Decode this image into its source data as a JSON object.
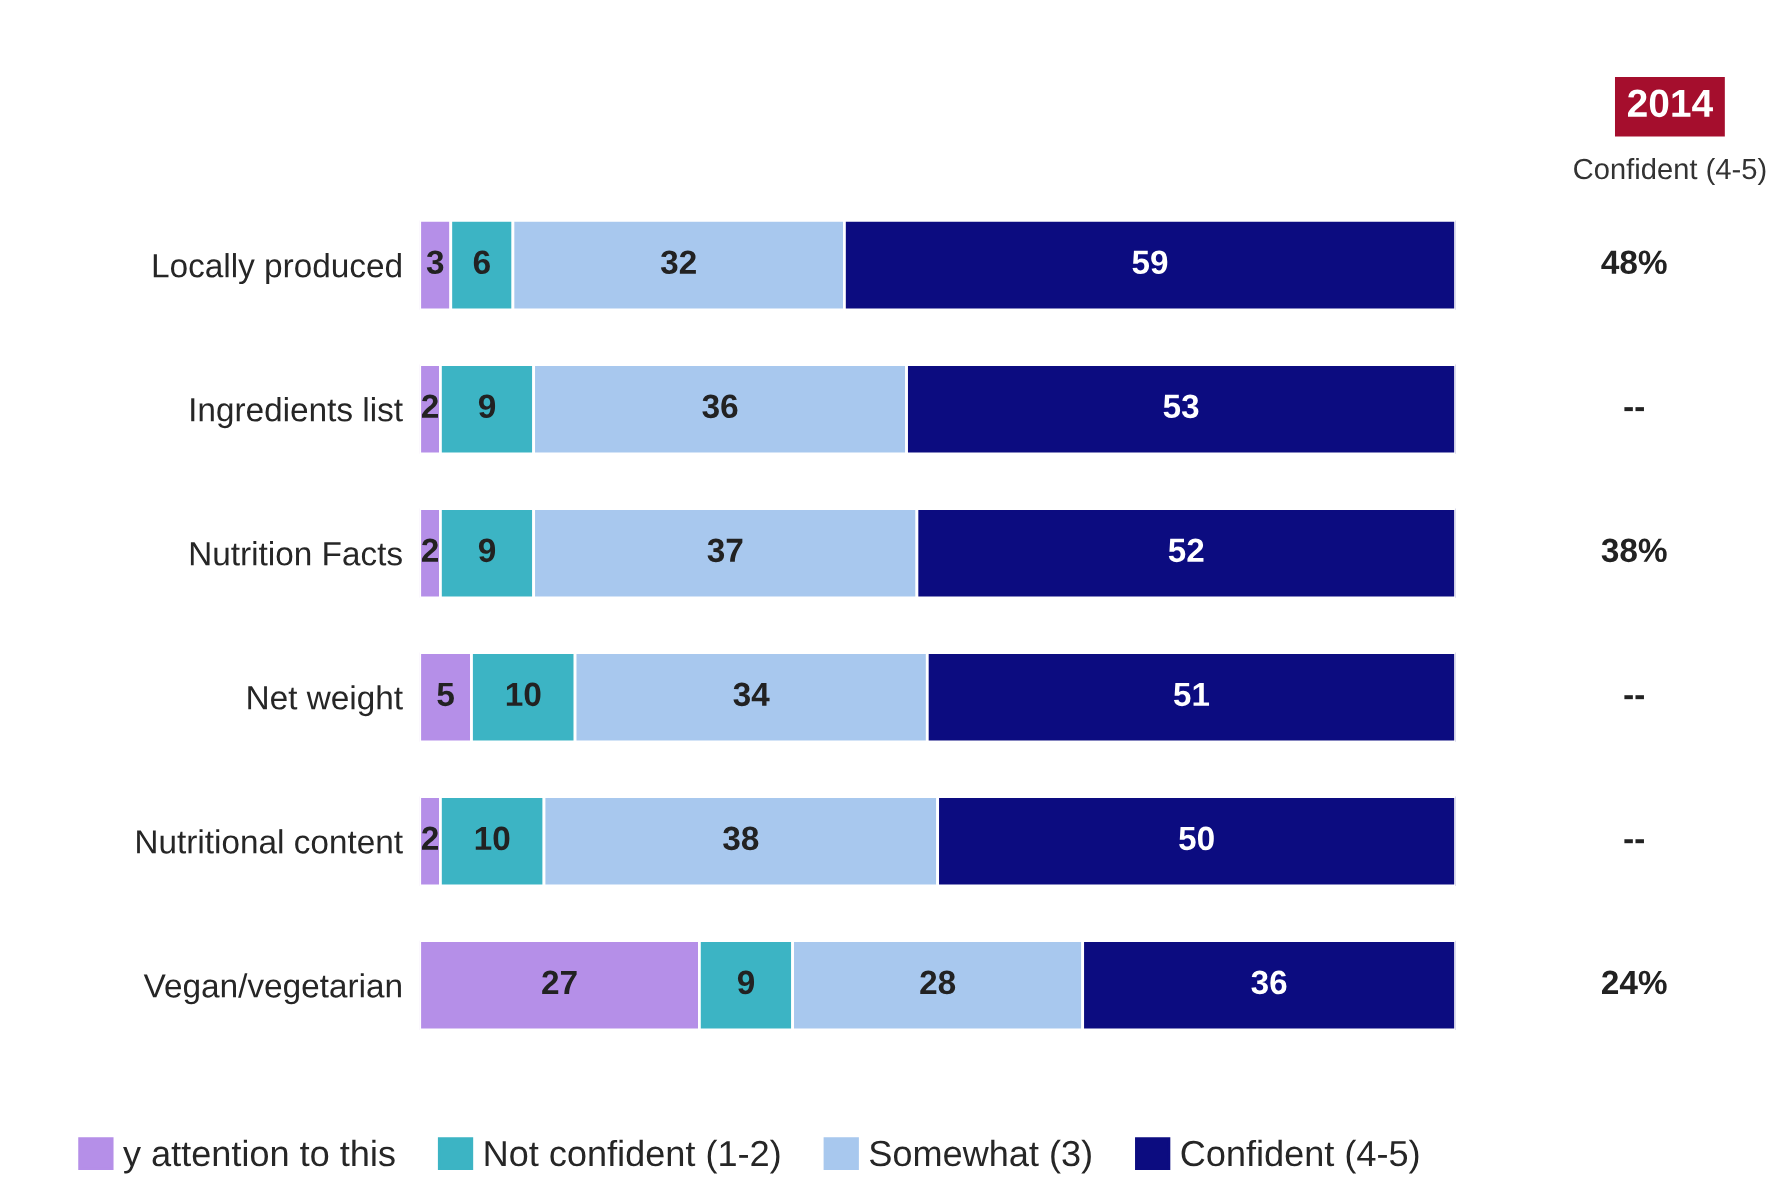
{
  "chart_data": {
    "type": "bar",
    "orientation": "horizontal",
    "stacked": true,
    "data_labels": true,
    "legend": "bottom",
    "grid": false,
    "categories": [
      "Locally produced",
      "Ingredients list",
      "Nutrition Facts",
      "Net weight",
      "Nutritional content",
      "Vegan/vegetarian"
    ],
    "series": [
      {
        "name": "y attention to this",
        "color": "#b58fe8",
        "values": [
          3,
          2,
          2,
          5,
          2,
          27
        ]
      },
      {
        "name": "Not confident (1-2)",
        "color": "#3cb4c4",
        "values": [
          6,
          9,
          9,
          10,
          10,
          9
        ]
      },
      {
        "name": "Somewhat (3)",
        "color": "#a8c8ee",
        "values": [
          32,
          36,
          37,
          34,
          38,
          28
        ]
      },
      {
        "name": "Confident (4-5)",
        "color": "#0c0c80",
        "values": [
          59,
          53,
          52,
          51,
          50,
          36
        ]
      }
    ],
    "annotations": [
      "2014",
      "Confident (4-5)",
      "48%",
      "--",
      "38%",
      "--",
      "--",
      "24%"
    ]
  }
}
